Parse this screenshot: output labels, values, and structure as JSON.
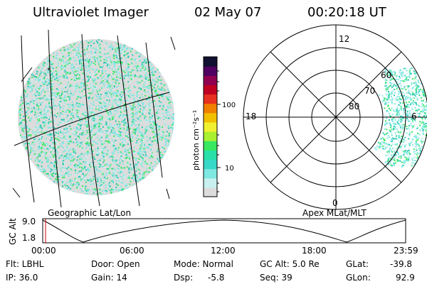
{
  "header": {
    "instrument": "Ultraviolet Imager",
    "date": "02 May 07",
    "time": "00:20:18 UT"
  },
  "colorbar": {
    "label": "photon cm⁻²s⁻¹",
    "ticks": [
      {
        "label": "100",
        "value": 100
      },
      {
        "label": "10",
        "value": 10
      }
    ],
    "colors": [
      "#dcdcdc",
      "#c8f0f0",
      "#7fe8e0",
      "#38d8c8",
      "#28e0a8",
      "#38e860",
      "#a8f030",
      "#f0f030",
      "#f0c000",
      "#f08000",
      "#e83020",
      "#c00020",
      "#900050",
      "#500060",
      "#101030"
    ]
  },
  "left_panel": {
    "caption": "Geographic Lat/Lon"
  },
  "right_panel": {
    "caption": "Apex MLat/MLT",
    "ring_labels": [
      "80",
      "70",
      "60"
    ],
    "mlt_labels": {
      "top": "12",
      "left": "18",
      "right": "6",
      "bottom": "0"
    }
  },
  "altitude_plot": {
    "ylabel": "GC Alt",
    "y_ticks": [
      "9.0",
      "1.8"
    ],
    "x_ticks": [
      "00:00",
      "06:00",
      "12:00",
      "18:00",
      "23:59"
    ]
  },
  "status": {
    "flt": "Flt: LBHL",
    "ip": "IP: 36.0",
    "door": "Door: Open",
    "gain": "Gain: 14",
    "mode": "Mode: Normal",
    "dsp_label": "Dsp:",
    "dsp_value": "-5.8",
    "gcalt": "GC Alt: 5.0 Re",
    "seq": "Seq: 39",
    "glat_label": "GLat:",
    "glat_value": "-39.8",
    "glon_label": "GLon:",
    "glon_value": "92.9"
  },
  "colors": {
    "noise_main": "#7fe8e0",
    "noise_dark": "#28c8b0",
    "noise_green": "#38e860",
    "noise_light": "#c8f0f0",
    "background_gray": "#dcdcdc"
  }
}
